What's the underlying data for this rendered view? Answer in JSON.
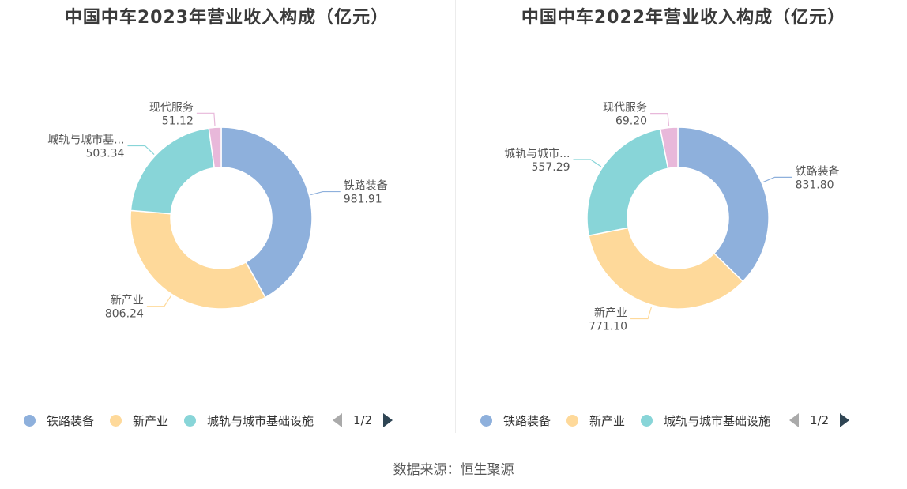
{
  "colors": [
    "#8eb0dc",
    "#fed99a",
    "#88d5d8",
    "#e8b8da"
  ],
  "legend_names": [
    "铁路装备",
    "新产业",
    "城轨与城市基础设施"
  ],
  "pager": "1/2",
  "source": "数据来源：恒生聚源",
  "chart_data": [
    {
      "type": "pie",
      "title": "中国中车2023年营业收入构成（亿元）",
      "slices": [
        {
          "name": "铁路装备",
          "label": "铁路装备",
          "value": 981.91,
          "value_text": "981.91"
        },
        {
          "name": "新产业",
          "label": "新产业",
          "value": 806.24,
          "value_text": "806.24"
        },
        {
          "name": "城轨与城市基础设施",
          "label": "城轨与城市基...",
          "value": 503.34,
          "value_text": "503.34"
        },
        {
          "name": "现代服务",
          "label": "现代服务",
          "value": 51.12,
          "value_text": "51.12"
        }
      ]
    },
    {
      "type": "pie",
      "title": "中国中车2022年营业收入构成（亿元）",
      "slices": [
        {
          "name": "铁路装备",
          "label": "铁路装备",
          "value": 831.8,
          "value_text": "831.80"
        },
        {
          "name": "新产业",
          "label": "新产业",
          "value": 771.1,
          "value_text": "771.10"
        },
        {
          "name": "城轨与城市基础设施",
          "label": "城轨与城市...",
          "value": 557.29,
          "value_text": "557.29"
        },
        {
          "name": "现代服务",
          "label": "现代服务",
          "value": 69.2,
          "value_text": "69.20"
        }
      ]
    }
  ]
}
